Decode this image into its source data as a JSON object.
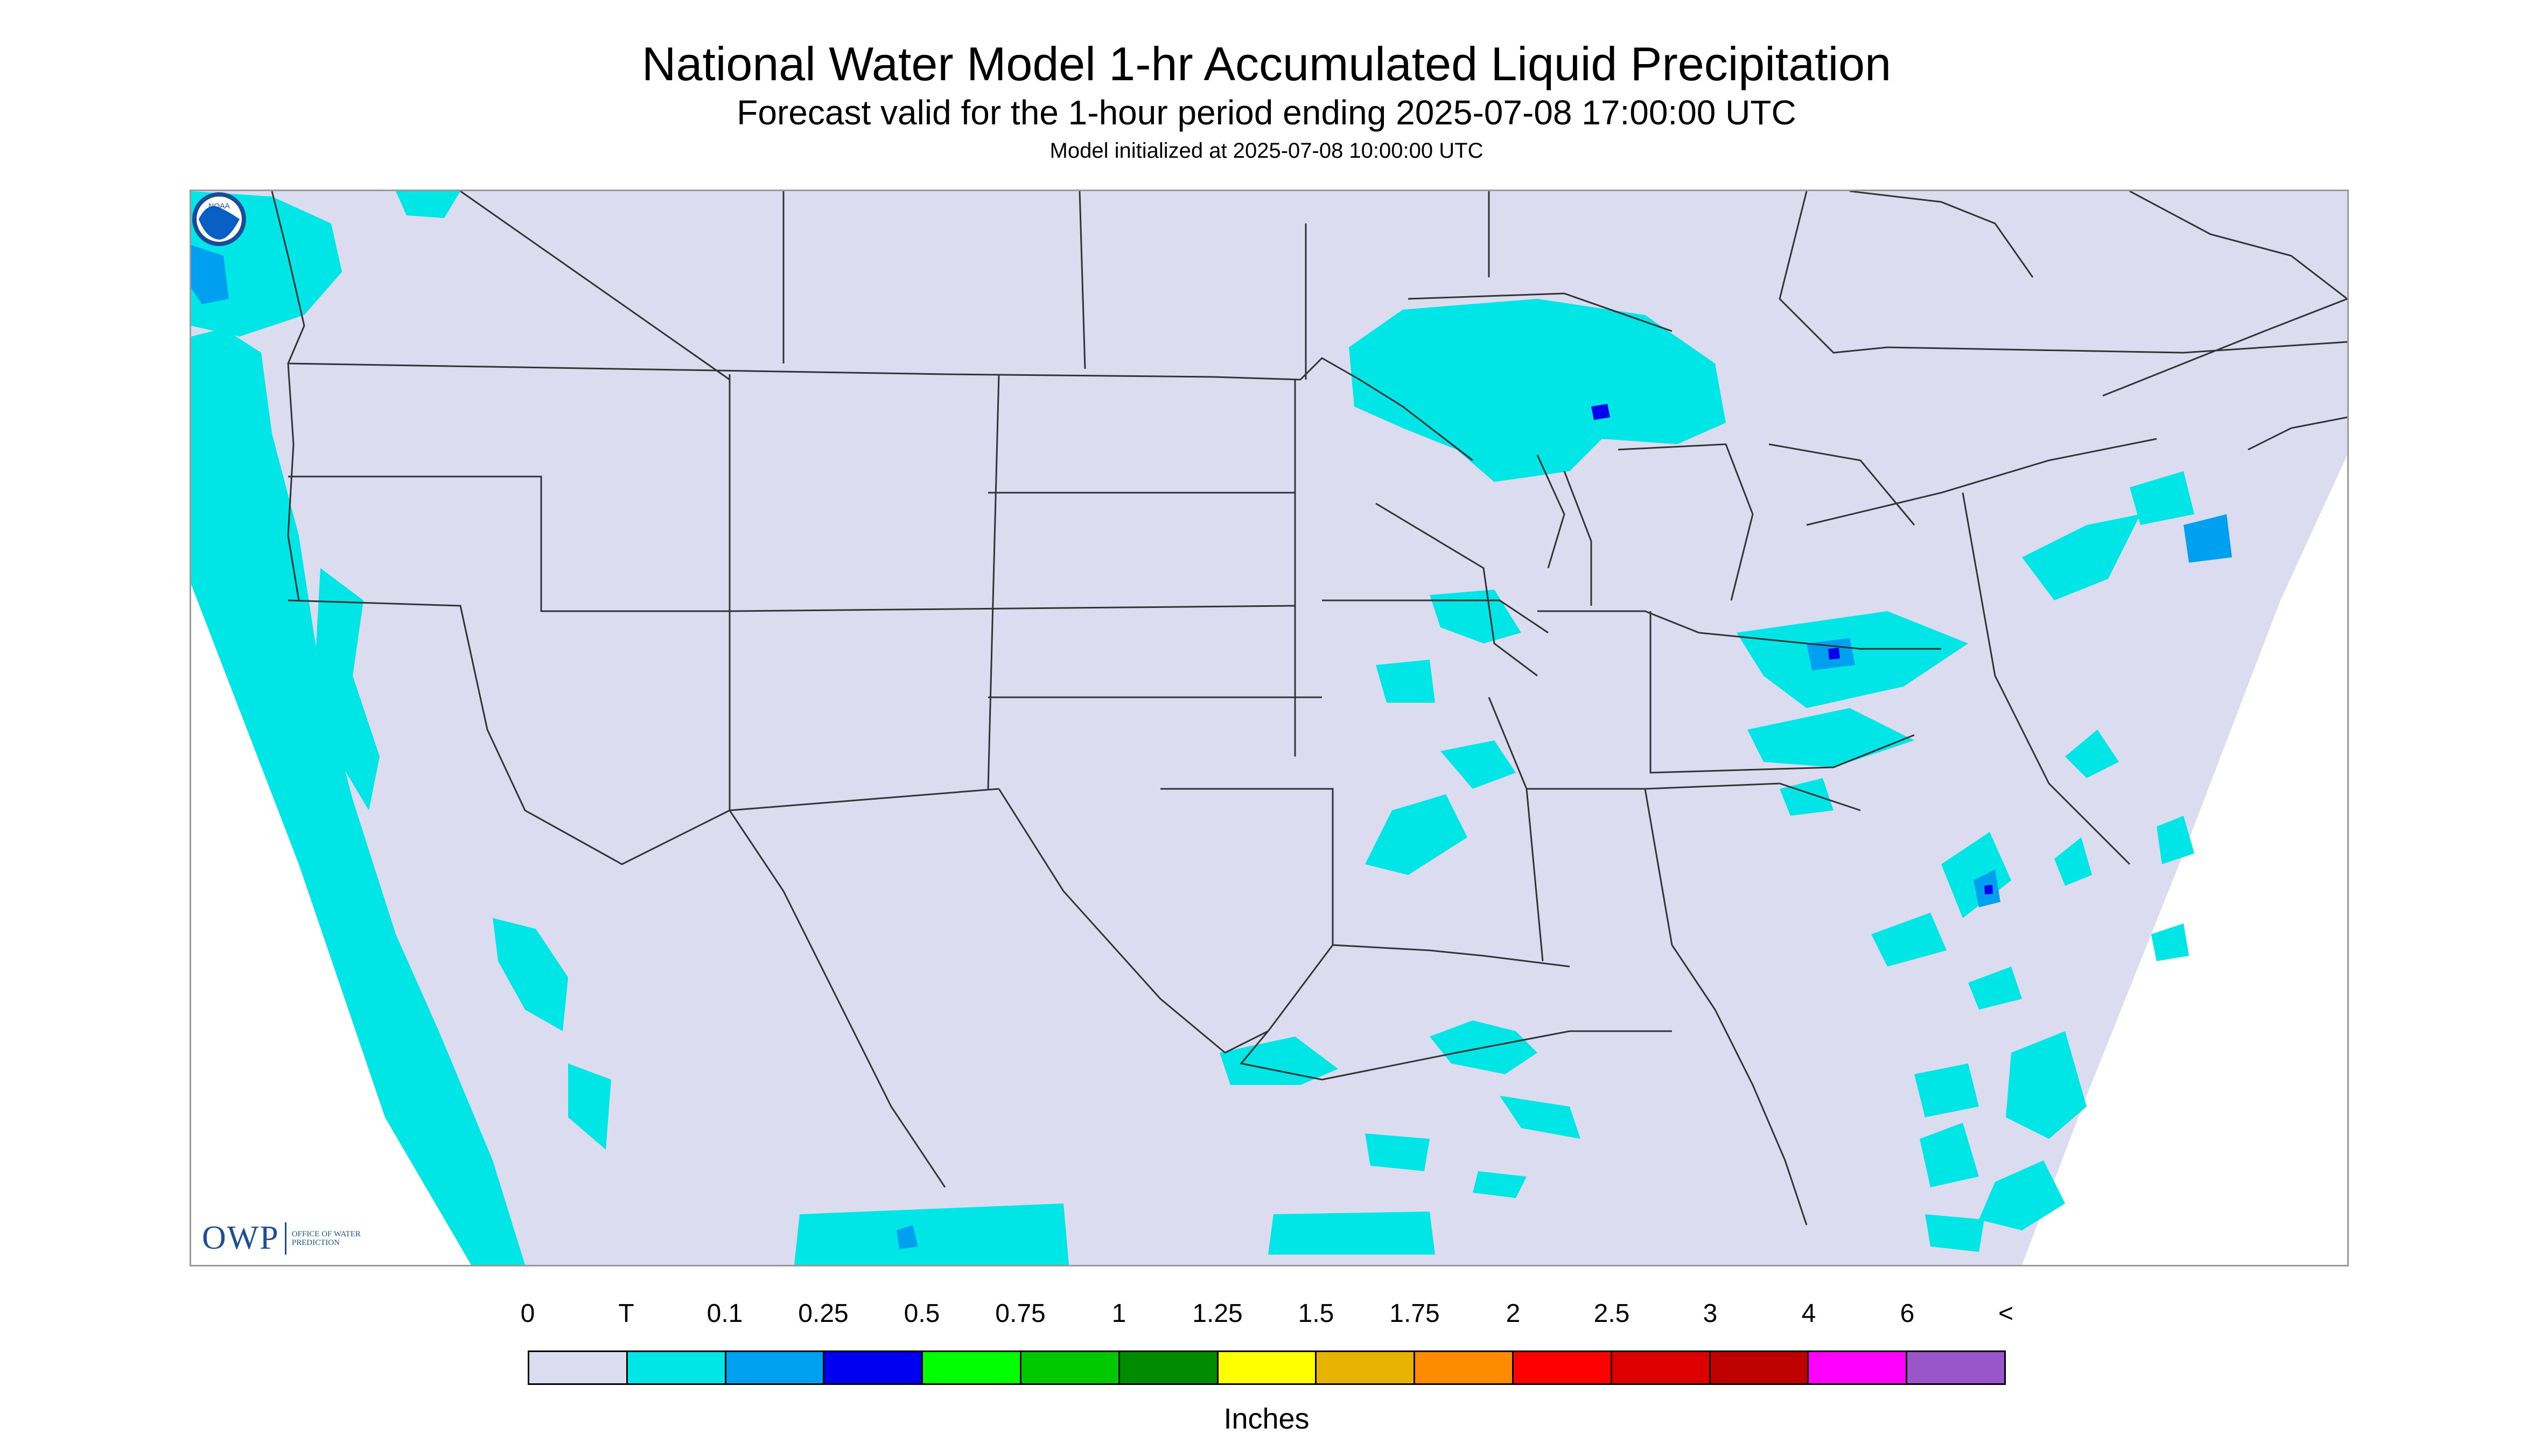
{
  "title": "National Water Model 1-hr Accumulated Liquid Precipitation",
  "subtitle": "Forecast valid for the 1-hour period ending 2025-07-08 17:00:00 UTC",
  "init_line": "Model initialized at 2025-07-08 10:00:00 UTC",
  "logos": {
    "owp_letters": "OWP",
    "owp_words": "OFFICE OF WATER PREDICTION",
    "noaa": "NOAA"
  },
  "legend": {
    "ticks": [
      "0",
      "T",
      "0.1",
      "0.25",
      "0.5",
      "0.75",
      "1",
      "1.25",
      "1.5",
      "1.75",
      "2",
      "2.5",
      "3",
      "4",
      "6",
      "<"
    ],
    "colors": [
      "#dcdcf0",
      "#00e6e6",
      "#00a0f0",
      "#0000f0",
      "#00ff00",
      "#00c800",
      "#008c00",
      "#ffff00",
      "#e6b400",
      "#ff8c00",
      "#ff0000",
      "#dc0000",
      "#be0000",
      "#ff00ff",
      "#9955c9"
    ],
    "units": "Inches"
  },
  "colors": {
    "land_background": "#dcdcf0",
    "trace": "#00e6e6",
    "light": "#00a0f0",
    "heavy": "#0000f0",
    "boundary_line": "#333333",
    "owp_blue": "#1e4f96"
  }
}
